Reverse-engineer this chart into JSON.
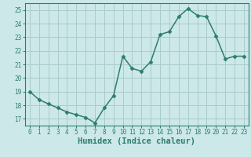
{
  "x": [
    0,
    1,
    2,
    3,
    4,
    5,
    6,
    7,
    8,
    9,
    10,
    11,
    12,
    13,
    14,
    15,
    16,
    17,
    18,
    19,
    20,
    21,
    22,
    23
  ],
  "y": [
    19.0,
    18.4,
    18.1,
    17.8,
    17.5,
    17.3,
    17.1,
    16.7,
    17.8,
    18.7,
    21.6,
    20.7,
    20.5,
    21.2,
    23.2,
    23.4,
    24.5,
    25.1,
    24.6,
    24.5,
    23.1,
    21.4,
    21.6,
    21.6
  ],
  "line_color": "#2e7d6e",
  "marker": "D",
  "marker_size": 2.5,
  "bg_color": "#cce8e8",
  "grid_color": "#aacccc",
  "xlabel": "Humidex (Indice chaleur)",
  "xlim": [
    -0.5,
    23.5
  ],
  "ylim": [
    16.5,
    25.5
  ],
  "yticks": [
    17,
    18,
    19,
    20,
    21,
    22,
    23,
    24,
    25
  ],
  "xticks": [
    0,
    1,
    2,
    3,
    4,
    5,
    6,
    7,
    8,
    9,
    10,
    11,
    12,
    13,
    14,
    15,
    16,
    17,
    18,
    19,
    20,
    21,
    22,
    23
  ],
  "tick_color": "#2e7d6e",
  "label_color": "#2e7d6e",
  "tick_fontsize": 5.5,
  "xlabel_fontsize": 7.5,
  "linewidth": 1.1
}
